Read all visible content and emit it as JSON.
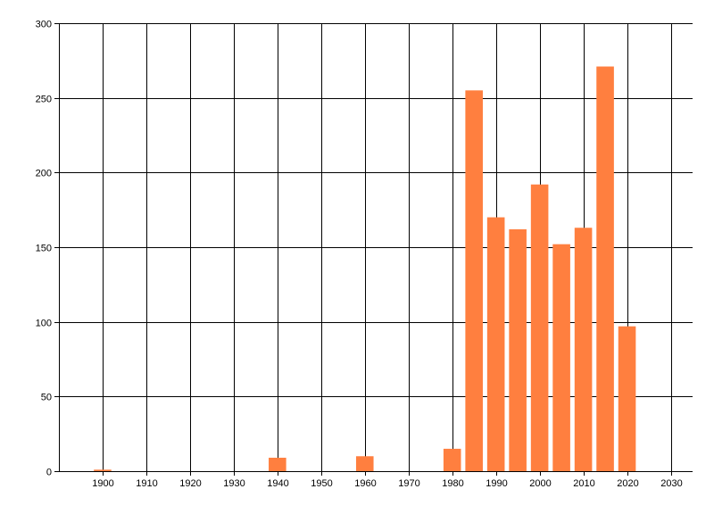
{
  "chart_data": {
    "type": "bar",
    "x": [
      1900,
      1940,
      1960,
      1980,
      1985,
      1990,
      1995,
      2000,
      2005,
      2010,
      2015,
      2020
    ],
    "values": [
      1,
      9,
      10,
      15,
      255,
      170,
      162,
      192,
      152,
      163,
      271,
      97
    ],
    "bar_width_years": 4,
    "xlim": [
      1890,
      2035
    ],
    "ylim": [
      0,
      300
    ],
    "x_ticks": [
      1900,
      1910,
      1920,
      1930,
      1940,
      1950,
      1960,
      1970,
      1980,
      1990,
      2000,
      2010,
      2020,
      2030
    ],
    "y_ticks": [
      0,
      50,
      100,
      150,
      200,
      250,
      300
    ],
    "grid": true,
    "legend": "none",
    "title": "",
    "xlabel": "",
    "ylabel": "",
    "colors": {
      "bar": "#ff7f3f",
      "grid": "#000000",
      "background": "#ffffff"
    }
  }
}
